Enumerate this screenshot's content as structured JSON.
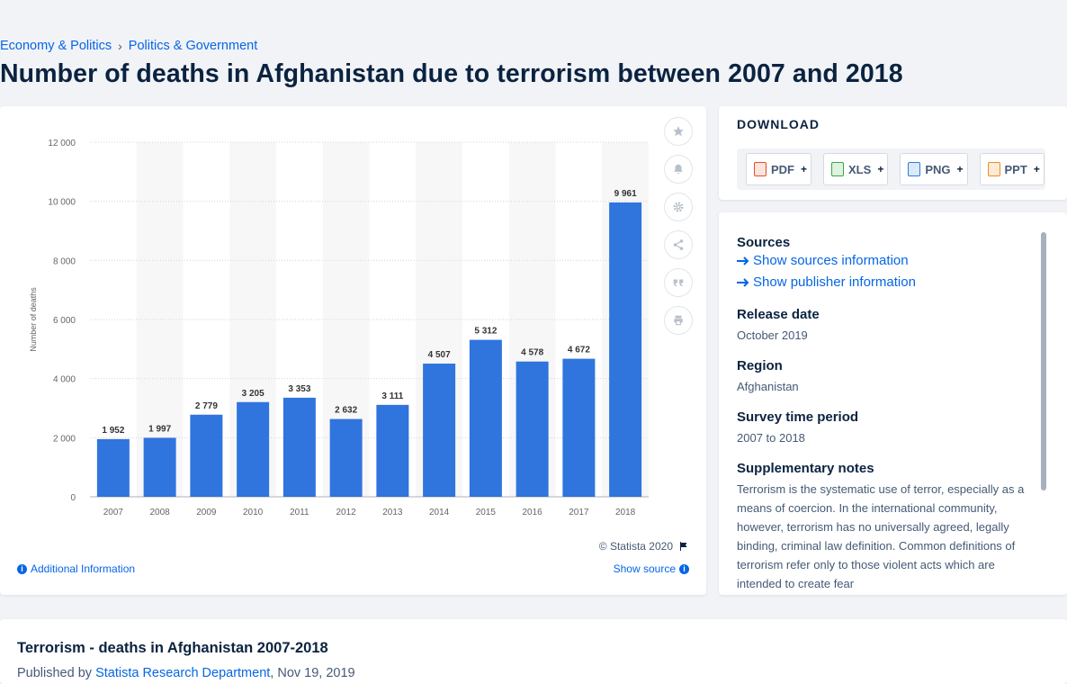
{
  "breadcrumb": {
    "item1": "Economy & Politics",
    "separator": "›",
    "item2": "Politics & Government"
  },
  "page_title": "Number of deaths in Afghanistan due to terrorism between 2007 and 2018",
  "chart_panel": {
    "copyright": "© Statista 2020",
    "additional_info": "Additional Information",
    "show_source": "Show source",
    "toolbar_icons": [
      "star-icon",
      "bell-icon",
      "gear-icon",
      "share-icon",
      "quote-icon",
      "print-icon"
    ]
  },
  "chart_data": {
    "type": "bar",
    "title": "",
    "ylabel": "Number of deaths",
    "xlabel": "",
    "categories": [
      "2007",
      "2008",
      "2009",
      "2010",
      "2011",
      "2012",
      "2013",
      "2014",
      "2015",
      "2016",
      "2017",
      "2018"
    ],
    "values": [
      1952,
      1997,
      2779,
      3205,
      3353,
      2632,
      3111,
      4507,
      5312,
      4578,
      4672,
      9961
    ],
    "value_labels": [
      "1 952",
      "1 997",
      "2 779",
      "3 205",
      "3 353",
      "2 632",
      "3 111",
      "4 507",
      "5 312",
      "4 578",
      "4 672",
      "9 961"
    ],
    "ylim": [
      0,
      12000
    ],
    "yticks": [
      0,
      2000,
      4000,
      6000,
      8000,
      10000,
      12000
    ],
    "ytick_labels": [
      "0",
      "2 000",
      "4 000",
      "6 000",
      "8 000",
      "10 000",
      "12 000"
    ],
    "bar_color": "#3074de",
    "grid": true,
    "legend": "none"
  },
  "download": {
    "title": "DOWNLOAD",
    "buttons": [
      {
        "label": "PDF",
        "plus": "+",
        "color": "#e24e2b"
      },
      {
        "label": "XLS",
        "plus": "+",
        "color": "#3aa641"
      },
      {
        "label": "PNG",
        "plus": "+",
        "color": "#2f7bd9"
      },
      {
        "label": "PPT",
        "plus": "+",
        "color": "#f08b1f"
      }
    ]
  },
  "info": {
    "sources_heading": "Sources",
    "show_sources": "Show sources information",
    "show_publisher": "Show publisher information",
    "release_heading": "Release date",
    "release_value": "October 2019",
    "region_heading": "Region",
    "region_value": "Afghanistan",
    "period_heading": "Survey time period",
    "period_value": "2007 to 2018",
    "notes_heading": "Supplementary notes",
    "notes_value": "Terrorism is the systematic use of terror, especially as a means of coercion. In the international community, however, terrorism has no universally agreed, legally binding, criminal law definition. Common definitions of terrorism refer only to those violent acts which are intended to create fear"
  },
  "bottom": {
    "title": "Terrorism - deaths in Afghanistan 2007-2018",
    "published_prefix": "Published by",
    "publisher": "Statista Research Department",
    "date": ", Nov 19, 2019"
  },
  "colors": {
    "accent": "#0666e5",
    "bar": "#3074de",
    "text_dark": "#0b2340"
  }
}
